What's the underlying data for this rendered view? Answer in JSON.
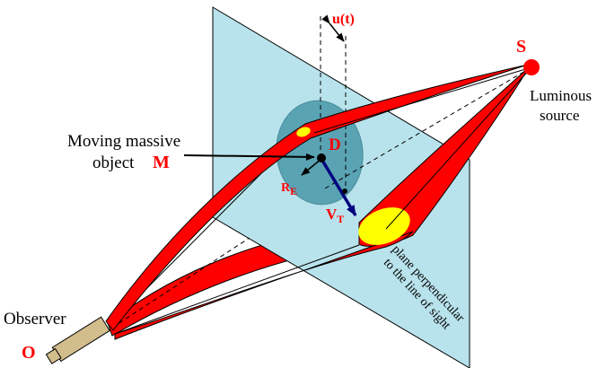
{
  "labels": {
    "u": "u(t)",
    "source_letter": "S",
    "source_caption_1": "Luminous",
    "source_caption_2": "source",
    "object_line_1": "Moving massive",
    "object_line_2": "object",
    "object_letter": "M",
    "deflector": "D",
    "re_main": "R",
    "re_sub": "E",
    "vt_main": "V",
    "vt_sub": "T",
    "plane_line_1": "plane perpendicular",
    "plane_line_2": "to the line of sight",
    "observer": "Observer",
    "observer_letter": "O"
  },
  "colors": {
    "plane": "#b9e3ec",
    "einstein_disc": "#5aa3b3",
    "beam": "#ff0000",
    "image": "#ffff00",
    "velocity_arrow": "#000080",
    "label_red": "#ff0000",
    "telescope": "#d2bd8c"
  }
}
